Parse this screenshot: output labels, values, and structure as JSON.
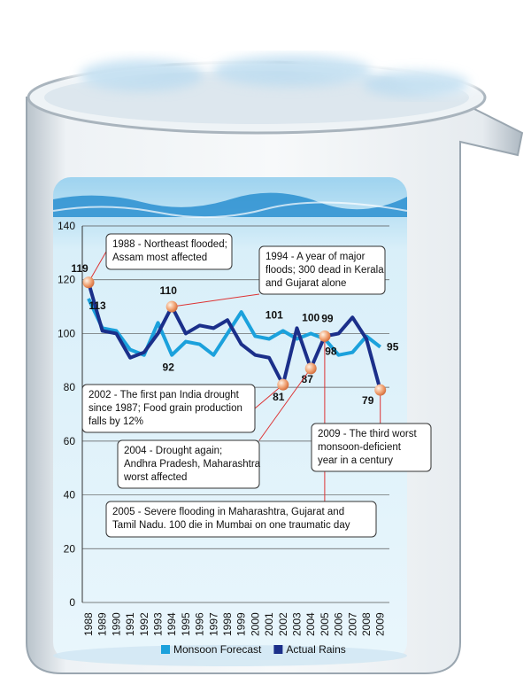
{
  "chart_data": {
    "type": "line",
    "categories": [
      "1988",
      "1989",
      "1990",
      "1991",
      "1992",
      "1993",
      "1994",
      "1995",
      "1996",
      "1997",
      "1998",
      "1999",
      "2000",
      "2001",
      "2002",
      "2003",
      "2004",
      "2005",
      "2006",
      "2007",
      "2008",
      "2009"
    ],
    "series": [
      {
        "name": "Monsoon Forecast",
        "color": "#1ba1dc",
        "values": [
          113,
          102,
          101,
          94,
          92,
          104,
          92,
          97,
          96,
          92,
          100,
          108,
          99,
          98,
          101,
          98,
          100,
          98,
          92,
          93,
          99,
          95
        ]
      },
      {
        "name": "Actual Rains",
        "color": "#1b2f8a",
        "values": [
          119,
          101,
          100,
          91,
          93,
          100,
          110,
          100,
          103,
          102,
          105,
          96,
          92,
          91,
          81,
          102,
          87,
          99,
          100,
          106,
          98,
          79
        ]
      }
    ],
    "ylim": [
      0,
      140
    ],
    "yticks": [
      0,
      20,
      40,
      60,
      80,
      100,
      120,
      140
    ],
    "grid": true,
    "legend": "bottom",
    "annotations": [
      {
        "lines": [
          "1988 - Northeast flooded;",
          "Assam most affected"
        ]
      },
      {
        "lines": [
          "1994 - A year of major",
          "floods; 300 dead in Kerala",
          "and Gujarat alone"
        ]
      },
      {
        "lines": [
          "2002 - The first pan India drought",
          "since 1987; Food grain production",
          "falls by 12%"
        ]
      },
      {
        "lines": [
          "2004 - Drought again;",
          "Andhra Pradesh, Maharashtra",
          "worst affected"
        ]
      },
      {
        "lines": [
          "2005 - Severe flooding in Maharashtra, Gujarat and",
          "Tamil Nadu. 100 die in Mumbai on one traumatic day"
        ]
      },
      {
        "lines": [
          "2009 - The third worst",
          "monsoon-deficient",
          "year in a century"
        ]
      }
    ]
  }
}
